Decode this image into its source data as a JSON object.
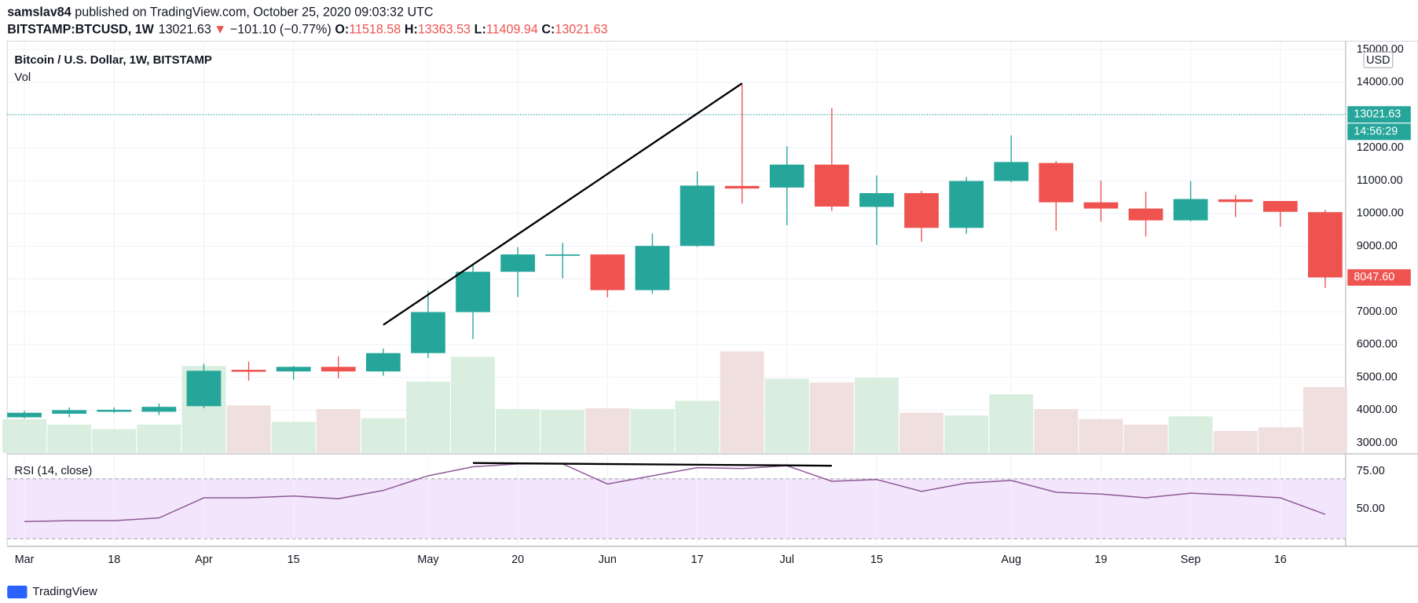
{
  "header": {
    "author": "samslav84",
    "published": "published on TradingView.com, October 25, 2020 09:03:32 UTC",
    "symbol": "BITSTAMP:BTCUSD, 1W",
    "last": 13021.63,
    "arrow": "▼",
    "change": "−101.10 (−0.77%)",
    "o_label": "O:",
    "open": 11518.58,
    "h_label": "H:",
    "high": 13363.53,
    "l_label": "L:",
    "low": 11409.94,
    "c_label": "C:",
    "close": 13021.63
  },
  "chart_data": {
    "type": "candlestick",
    "title": "Bitcoin / U.S. Dollar, 1W, BITSTAMP",
    "volume_label": "Vol",
    "rsi_label": "RSI (14, close)",
    "currency": "USD",
    "categories": [
      "Mar",
      null,
      "18",
      null,
      "Apr",
      null,
      "15",
      null,
      null,
      "May",
      null,
      "20",
      null,
      "Jun",
      null,
      "17",
      null,
      "Jul",
      null,
      "15",
      null,
      null,
      "Aug",
      null,
      "19",
      null,
      "Sep",
      null,
      "16",
      null
    ],
    "open": [
      3780,
      3890,
      3950,
      3950,
      4120,
      5230,
      5180,
      5320,
      5180,
      5740,
      6990,
      8220,
      8720,
      8750,
      7660,
      9010,
      10840,
      10790,
      11490,
      10200,
      10620,
      9560,
      10990,
      11540,
      10340,
      10150,
      9790,
      10430,
      10380,
      10040
    ],
    "high": [
      3980,
      4080,
      4080,
      4200,
      5420,
      5480,
      5350,
      5640,
      5880,
      7640,
      8440,
      8970,
      9100,
      8750,
      9390,
      11280,
      13940,
      12050,
      13220,
      11160,
      10690,
      11110,
      12380,
      11600,
      11000,
      10660,
      10990,
      10560,
      10380,
      10110
    ],
    "low": [
      3750,
      3780,
      3920,
      3850,
      4060,
      4900,
      4930,
      4970,
      5050,
      5590,
      6170,
      7450,
      8020,
      7440,
      7550,
      8980,
      10300,
      9640,
      10080,
      9040,
      9140,
      9380,
      10950,
      9480,
      9750,
      9300,
      9760,
      9890,
      9590,
      7730
    ],
    "close": [
      3920,
      4000,
      4010,
      4100,
      5200,
      5170,
      5320,
      5180,
      5740,
      6990,
      8220,
      8750,
      8750,
      7660,
      9010,
      10850,
      10760,
      11490,
      10210,
      10620,
      9560,
      10990,
      11570,
      10340,
      10150,
      9790,
      10440,
      10350,
      10050,
      8047.6
    ],
    "volume": [
      37,
      31,
      26,
      31,
      95,
      52,
      34,
      48,
      38,
      78,
      105,
      48,
      47,
      49,
      48,
      57,
      111,
      81,
      77,
      82,
      44,
      41,
      64,
      48,
      37,
      31,
      40,
      24,
      28,
      72
    ],
    "rsi": [
      41.5,
      42.1,
      42.1,
      43.9,
      57.3,
      57.3,
      58.5,
      56.7,
      62.2,
      72,
      78,
      79.9,
      79.9,
      66.5,
      72,
      77.4,
      76.8,
      78.7,
      68.3,
      69.5,
      61.6,
      67.1,
      68.9,
      61,
      59.8,
      57.3,
      60.4,
      59.1,
      57.3,
      46.3
    ],
    "up_color": "#26a69a",
    "down_color": "#ef5350",
    "rsi_color": "#8e5a97",
    "ylim": [
      2694,
      15256
    ],
    "yticks": [
      {
        "value": 3000,
        "label": "3000.00"
      },
      {
        "value": 4000,
        "label": "4000.00"
      },
      {
        "value": 5000,
        "label": "5000.00"
      },
      {
        "value": 6000,
        "label": "6000.00"
      },
      {
        "value": 7000,
        "label": "7000.00"
      },
      {
        "value": 8000,
        "label": "8000.00"
      },
      {
        "value": 9000,
        "label": "9000.00"
      },
      {
        "value": 10000,
        "label": "10000.00"
      },
      {
        "value": 11000,
        "label": "11000.00"
      },
      {
        "value": 12000,
        "label": "12000.00"
      },
      {
        "value": 13000,
        "label": "13000.00"
      },
      {
        "value": 14000,
        "label": "14000.00"
      },
      {
        "value": 15000,
        "label": "15000.00"
      }
    ],
    "rsi_ylim": [
      25,
      86
    ],
    "rsi_yticks": [
      {
        "value": 50,
        "label": "50.00"
      },
      {
        "value": 75,
        "label": "75.00"
      }
    ],
    "rsi_band": [
      30,
      70
    ],
    "last_price": 13021.63,
    "countdown": "14:56:29",
    "close_label": {
      "value": 8047.6,
      "label": "8047.60"
    },
    "grid": true,
    "trend_lines": [
      {
        "panel": "price",
        "x": [
          8,
          16
        ],
        "y": [
          6600,
          13970
        ]
      },
      {
        "panel": "rsi",
        "x": [
          10,
          18
        ],
        "y": [
          80.5,
          78.7
        ]
      }
    ]
  },
  "footer": {
    "brand": "TradingView"
  }
}
